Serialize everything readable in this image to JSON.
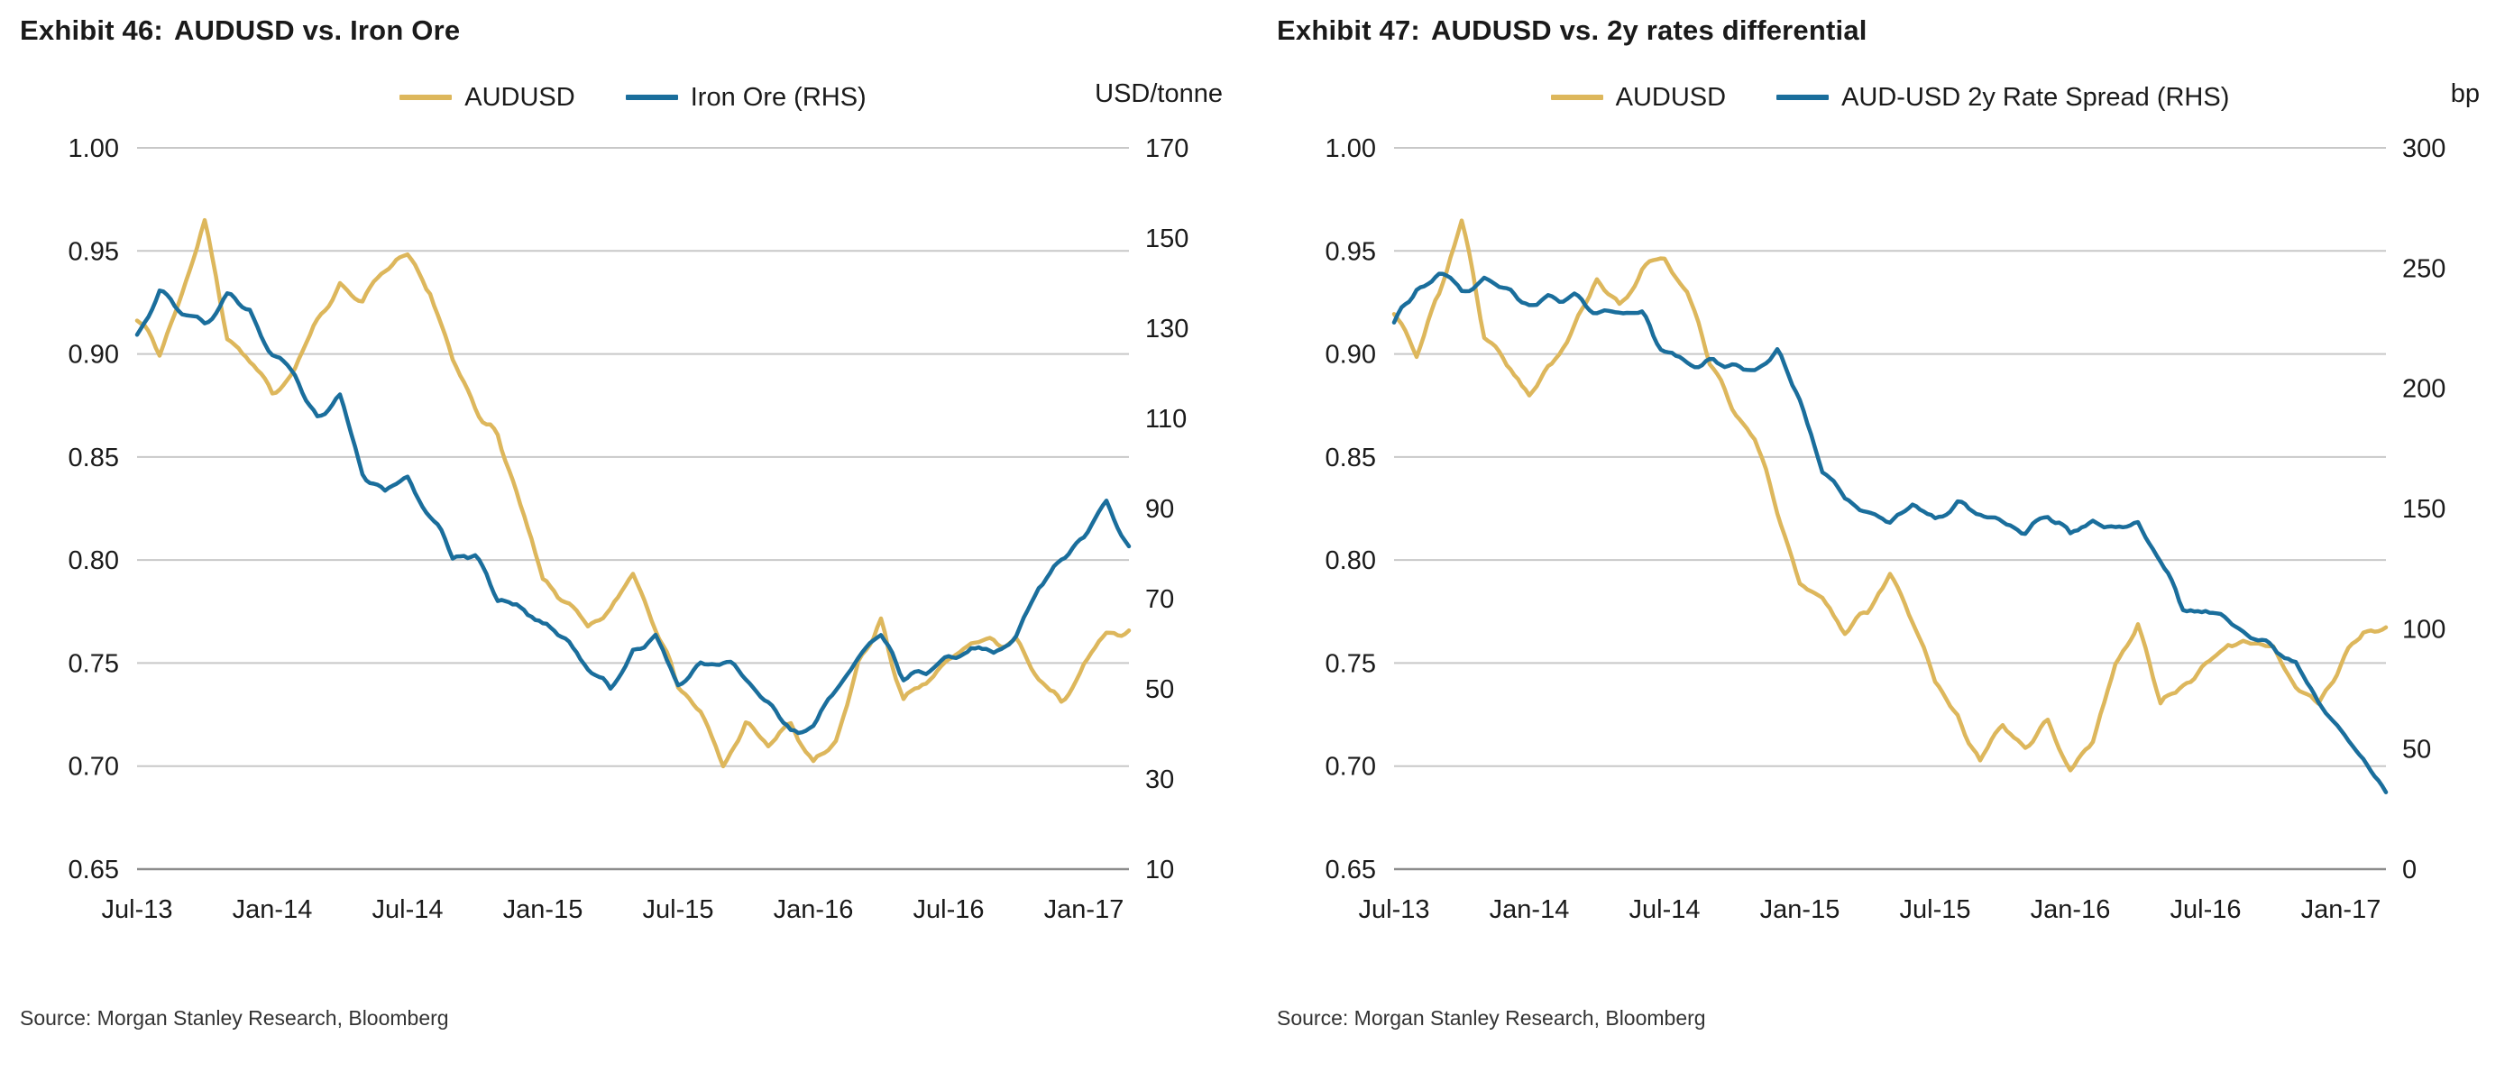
{
  "page": {
    "background": "#ffffff",
    "gridline_color": "#c8c8c8",
    "axis_line_color": "#8c8c8c"
  },
  "chart_data": [
    {
      "type": "line",
      "exhibit_label": "Exhibit 46:",
      "title": "AUDUSD vs. Iron Ore",
      "source": "Source: Morgan Stanley Research, Bloomberg",
      "right_axis_unit": "USD/tonne",
      "legend_position": "top-center",
      "grid": "horizontal-only",
      "left_axis": {
        "min": 0.65,
        "max": 1.0,
        "ticks": [
          "1.00",
          "0.95",
          "0.90",
          "0.85",
          "0.80",
          "0.75",
          "0.70",
          "0.65"
        ]
      },
      "right_axis": {
        "min": 10,
        "max": 170,
        "ticks": [
          "170",
          "150",
          "130",
          "110",
          "90",
          "70",
          "50",
          "30",
          "10"
        ]
      },
      "x_ticks": {
        "labels": [
          "Jul-13",
          "Jan-14",
          "Jul-14",
          "Jan-15",
          "Jul-15",
          "Jan-16",
          "Jul-16",
          "Jan-17"
        ],
        "month_positions": [
          0,
          6,
          12,
          18,
          24,
          30,
          36,
          42
        ]
      },
      "x_months": [
        "Jul-13",
        "Aug-13",
        "Sep-13",
        "Oct-13",
        "Nov-13",
        "Dec-13",
        "Jan-14",
        "Feb-14",
        "Mar-14",
        "Apr-14",
        "May-14",
        "Jun-14",
        "Jul-14",
        "Aug-14",
        "Sep-14",
        "Oct-14",
        "Nov-14",
        "Dec-14",
        "Jan-15",
        "Feb-15",
        "Mar-15",
        "Apr-15",
        "May-15",
        "Jun-15",
        "Jul-15",
        "Aug-15",
        "Sep-15",
        "Oct-15",
        "Nov-15",
        "Dec-15",
        "Jan-16",
        "Feb-16",
        "Mar-16",
        "Apr-16",
        "May-16",
        "Jun-16",
        "Jul-16",
        "Aug-16",
        "Sep-16",
        "Oct-16",
        "Nov-16",
        "Dec-16",
        "Jan-17",
        "Feb-17",
        "Mar-17"
      ],
      "series": [
        {
          "name": "AUDUSD",
          "axis": "left",
          "color": "#DDB75C",
          "values": [
            0.92,
            0.9,
            0.93,
            0.965,
            0.91,
            0.895,
            0.88,
            0.895,
            0.915,
            0.935,
            0.925,
            0.94,
            0.945,
            0.93,
            0.895,
            0.875,
            0.86,
            0.825,
            0.79,
            0.78,
            0.765,
            0.775,
            0.795,
            0.77,
            0.74,
            0.725,
            0.7,
            0.72,
            0.71,
            0.72,
            0.7,
            0.71,
            0.75,
            0.77,
            0.73,
            0.74,
            0.75,
            0.76,
            0.76,
            0.76,
            0.74,
            0.73,
            0.75,
            0.765,
            0.765
          ]
        },
        {
          "name": "Iron Ore (RHS)",
          "axis": "right",
          "color": "#1A6E9C",
          "values": [
            128,
            138,
            134,
            132,
            136,
            135,
            124,
            119,
            111,
            114,
            98,
            93,
            96,
            89,
            79,
            80,
            70,
            68,
            65,
            62,
            55,
            50,
            59,
            61,
            51,
            56,
            56,
            52,
            46,
            40,
            42,
            49,
            56,
            62,
            53,
            52,
            57,
            60,
            57,
            62,
            73,
            79,
            83,
            91,
            81
          ]
        }
      ]
    },
    {
      "type": "line",
      "exhibit_label": "Exhibit 47:",
      "title": "AUDUSD vs. 2y rates differential",
      "source": "Source: Morgan Stanley Research, Bloomberg",
      "right_axis_unit": "bp",
      "legend_position": "top-center",
      "grid": "horizontal-only",
      "left_axis": {
        "min": 0.65,
        "max": 1.0,
        "ticks": [
          "1.00",
          "0.95",
          "0.90",
          "0.85",
          "0.80",
          "0.75",
          "0.70",
          "0.65"
        ]
      },
      "right_axis": {
        "min": 0,
        "max": 300,
        "ticks": [
          "300",
          "250",
          "200",
          "150",
          "100",
          "50",
          "0"
        ]
      },
      "x_ticks": {
        "labels": [
          "Jul-13",
          "Jan-14",
          "Jul-14",
          "Jan-15",
          "Jul-15",
          "Jan-16",
          "Jul-16",
          "Jan-17"
        ],
        "month_positions": [
          0,
          6,
          12,
          18,
          24,
          30,
          36,
          42
        ]
      },
      "x_months": [
        "Jul-13",
        "Aug-13",
        "Sep-13",
        "Oct-13",
        "Nov-13",
        "Dec-13",
        "Jan-14",
        "Feb-14",
        "Mar-14",
        "Apr-14",
        "May-14",
        "Jun-14",
        "Jul-14",
        "Aug-14",
        "Sep-14",
        "Oct-14",
        "Nov-14",
        "Dec-14",
        "Jan-15",
        "Feb-15",
        "Mar-15",
        "Apr-15",
        "May-15",
        "Jun-15",
        "Jul-15",
        "Aug-15",
        "Sep-15",
        "Oct-15",
        "Nov-15",
        "Dec-15",
        "Jan-16",
        "Feb-16",
        "Mar-16",
        "Apr-16",
        "May-16",
        "Jun-16",
        "Jul-16",
        "Aug-16",
        "Sep-16",
        "Oct-16",
        "Nov-16",
        "Dec-16",
        "Jan-17",
        "Feb-17",
        "Mar-17"
      ],
      "series": [
        {
          "name": "AUDUSD",
          "axis": "left",
          "color": "#DDB75C",
          "values": [
            0.92,
            0.9,
            0.93,
            0.965,
            0.91,
            0.895,
            0.88,
            0.895,
            0.915,
            0.935,
            0.925,
            0.94,
            0.945,
            0.93,
            0.895,
            0.875,
            0.86,
            0.825,
            0.79,
            0.78,
            0.765,
            0.775,
            0.795,
            0.77,
            0.74,
            0.725,
            0.7,
            0.72,
            0.71,
            0.72,
            0.7,
            0.71,
            0.75,
            0.77,
            0.73,
            0.74,
            0.75,
            0.76,
            0.76,
            0.76,
            0.74,
            0.73,
            0.75,
            0.765,
            0.765
          ]
        },
        {
          "name": "AUD-USD 2y Rate Spread (RHS)",
          "axis": "right",
          "color": "#1A6E9C",
          "values": [
            228,
            243,
            248,
            241,
            246,
            240,
            237,
            236,
            237,
            232,
            231,
            230,
            215,
            210,
            213,
            209,
            208,
            214,
            196,
            165,
            154,
            148,
            145,
            151,
            146,
            153,
            148,
            144,
            140,
            146,
            140,
            145,
            140,
            146,
            128,
            110,
            108,
            101,
            96,
            92,
            85,
            70,
            57,
            45,
            32
          ]
        }
      ]
    }
  ]
}
